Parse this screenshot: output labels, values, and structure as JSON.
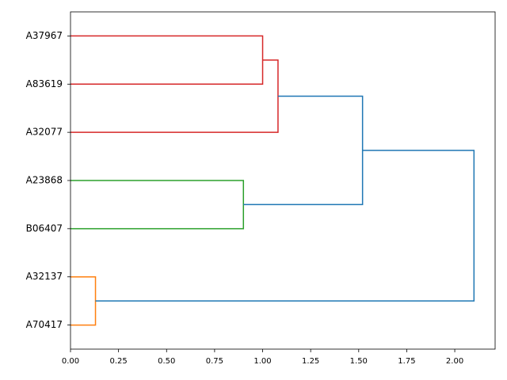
{
  "chart_data": {
    "type": "dendrogram",
    "orientation": "right",
    "leaves": [
      "A37967",
      "A83619",
      "A32077",
      "A23868",
      "B06407",
      "A32137",
      "A70417"
    ],
    "merges": [
      {
        "left": 0,
        "right": 1,
        "height": 1.0,
        "color": "#d62728"
      },
      {
        "left": 7,
        "right": 2,
        "height": 1.08,
        "color": "#d62728"
      },
      {
        "left": 3,
        "right": 4,
        "height": 0.9,
        "color": "#2ca02c"
      },
      {
        "left": 8,
        "right": 9,
        "height": 1.52,
        "color": "#1f77b4"
      },
      {
        "left": 5,
        "right": 6,
        "height": 0.13,
        "color": "#ff7f0e"
      },
      {
        "left": 10,
        "right": 11,
        "height": 2.1,
        "color": "#1f77b4"
      }
    ],
    "xlim": [
      0,
      2.21
    ],
    "xticks": [
      {
        "value": 0,
        "label": "0.00"
      },
      {
        "value": 0.25,
        "label": "0.25"
      },
      {
        "value": 0.5,
        "label": "0.50"
      },
      {
        "value": 0.75,
        "label": "0.75"
      },
      {
        "value": 1,
        "label": "1.00"
      },
      {
        "value": 1.25,
        "label": "1.25"
      },
      {
        "value": 1.5,
        "label": "1.50"
      },
      {
        "value": 1.75,
        "label": "1.75"
      },
      {
        "value": 2,
        "label": "2.00"
      }
    ]
  }
}
